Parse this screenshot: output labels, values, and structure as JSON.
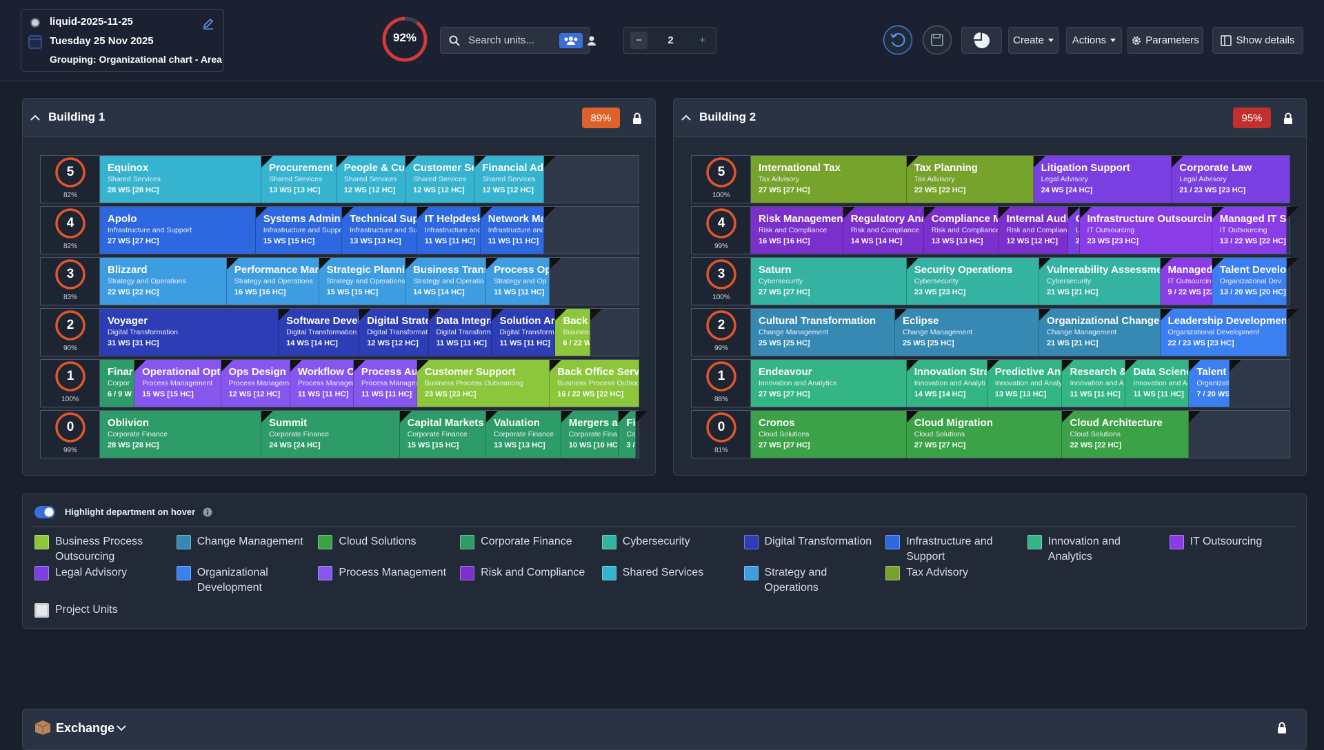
{
  "header": {
    "project": "liquid-2025-11-25",
    "date": "Tuesday 25 Nov 2025",
    "grouping": "Grouping: Organizational chart - Area",
    "occupancy": "92%",
    "search_placeholder": "Search units...",
    "decrement": "−",
    "level": "2",
    "increment": "+",
    "create": "Create",
    "actions": "Actions",
    "parameters": "Parameters",
    "show_details": "Show details"
  },
  "buildings": [
    {
      "name": "Building 1",
      "occupancy": "89%",
      "badge_color": "#dd6128",
      "floors": [
        {
          "level": "5",
          "occupancy": "82%",
          "units": [
            {
              "name": "Equinox",
              "department": "Shared Services",
              "workstations": "28 WS [28 HC]",
              "color": "#36b3cf"
            },
            {
              "name": "Procurement S",
              "department": "Shared Services",
              "workstations": "13 WS [13 HC]",
              "color": "#36b3cf"
            },
            {
              "name": "People & Cul",
              "department": "Shared Services",
              "workstations": "12 WS [12 HC]",
              "color": "#36b3cf"
            },
            {
              "name": "Customer Ser",
              "department": "Shared Services",
              "workstations": "12 WS [12 HC]",
              "color": "#36b3cf"
            },
            {
              "name": "Financial Adr",
              "department": "Shared Services",
              "workstations": "12 WS [12 HC]",
              "color": "#36b3cf"
            }
          ]
        },
        {
          "level": "4",
          "occupancy": "82%",
          "units": [
            {
              "name": "Apolo",
              "department": "Infrastructure and Support",
              "workstations": "27 WS [27 HC]",
              "color": "#2e68e0"
            },
            {
              "name": "Systems Adminis",
              "department": "Infrastructure and Suppo",
              "workstations": "15 WS [15 HC]",
              "color": "#2e68e0"
            },
            {
              "name": "Technical Supp",
              "department": "Infrastructure and Su",
              "workstations": "13 WS [13 HC]",
              "color": "#2e68e0"
            },
            {
              "name": "IT Helpdesk",
              "department": "Infrastructure and",
              "workstations": "11 WS [11 HC]",
              "color": "#2e68e0"
            },
            {
              "name": "Network Ma",
              "department": "Infrastructure and",
              "workstations": "11 WS [11 HC]",
              "color": "#2e68e0"
            }
          ]
        },
        {
          "level": "3",
          "occupancy": "83%",
          "units": [
            {
              "name": "Blizzard",
              "department": "Strategy and Operations",
              "workstations": "22 WS [22 HC]",
              "color": "#3d9de0"
            },
            {
              "name": "Performance Man",
              "department": "Strategy and Operations",
              "workstations": "16 WS [16 HC]",
              "color": "#3d9de0"
            },
            {
              "name": "Strategic Plannin",
              "department": "Strategy and Operations",
              "workstations": "15 WS [15 HC]",
              "color": "#3d9de0"
            },
            {
              "name": "Business Transfo",
              "department": "Strategy and Operatio",
              "workstations": "14 WS [14 HC]",
              "color": "#3d9de0"
            },
            {
              "name": "Process Op",
              "department": "Strategy and Op",
              "workstations": "11 WS [11 HC]",
              "color": "#3d9de0"
            }
          ]
        },
        {
          "level": "2",
          "occupancy": "90%",
          "units": [
            {
              "name": "Voyager",
              "department": "Digital Transformation",
              "workstations": "31 WS [31 HC]",
              "color": "#2c3db5"
            },
            {
              "name": "Software Devel",
              "department": "Digital Transformation",
              "workstations": "14 WS [14 HC]",
              "color": "#2c3db5"
            },
            {
              "name": "Digital Strate",
              "department": "Digital Transformat",
              "workstations": "12 WS [12 HC]",
              "color": "#2c3db5"
            },
            {
              "name": "Data Integra",
              "department": "Digital Transform",
              "workstations": "11 WS [11 HC]",
              "color": "#2c3db5"
            },
            {
              "name": "Solution Arc",
              "department": "Digital Transform",
              "workstations": "11 WS [11 HC]",
              "color": "#2c3db5"
            },
            {
              "name": "Back C",
              "department": "Business",
              "workstations": "6 / 22 W",
              "color": "#8cc63a"
            }
          ]
        },
        {
          "level": "1",
          "occupancy": "100%",
          "units": [
            {
              "name": "Finar",
              "department": "Corpor",
              "workstations": "6 / 9 W",
              "color": "#2e9c68"
            },
            {
              "name": "Operational Opt",
              "department": "Process Management",
              "workstations": "15 WS [15 HC]",
              "color": "#8656ee"
            },
            {
              "name": "Ops Design",
              "department": "Process Manageme",
              "workstations": "12 WS [12 HC]",
              "color": "#8656ee"
            },
            {
              "name": "Workflow C",
              "department": "Process Managem",
              "workstations": "11 WS [11 HC]",
              "color": "#8656ee"
            },
            {
              "name": "Process Aut",
              "department": "Process Managem",
              "workstations": "11 WS [11 HC]",
              "color": "#8656ee"
            },
            {
              "name": "Customer Support",
              "department": "Business Process Outsourcing",
              "workstations": "23 WS [23 HC]",
              "color": "#8cc63a"
            },
            {
              "name": "Back Office Servi",
              "department": "Business Process Outsour",
              "workstations": "16 / 22 WS [22 HC]",
              "color": "#8cc63a"
            }
          ]
        },
        {
          "level": "0",
          "occupancy": "99%",
          "units": [
            {
              "name": "Oblivion",
              "department": "Corporate Finance",
              "workstations": "28 WS [28 HC]",
              "color": "#2e9c68"
            },
            {
              "name": "Summit",
              "department": "Corporate Finance",
              "workstations": "24 WS [24 HC]",
              "color": "#2e9c68"
            },
            {
              "name": "Capital Markets A",
              "department": "Corporate Finance",
              "workstations": "15 WS [15 HC]",
              "color": "#2e9c68"
            },
            {
              "name": "Valuation",
              "department": "Corporate Finance",
              "workstations": "13 WS [13 HC]",
              "color": "#2e9c68"
            },
            {
              "name": "Mergers ar",
              "department": "Corporate Fina",
              "workstations": "10 WS [10 HC]",
              "color": "#2e9c68"
            },
            {
              "name": "Fi",
              "department": "Cor",
              "workstations": "3 /",
              "color": "#2e9c68"
            }
          ]
        }
      ]
    },
    {
      "name": "Building 2",
      "occupancy": "95%",
      "badge_color": "#c22f2c",
      "floors": [
        {
          "level": "5",
          "occupancy": "100%",
          "units": [
            {
              "name": "International Tax",
              "department": "Tax Advisory",
              "workstations": "27 WS [27 HC]",
              "color": "#76a32b"
            },
            {
              "name": "Tax Planning",
              "department": "Tax Advisory",
              "workstations": "22 WS [22 HC]",
              "color": "#76a32b"
            },
            {
              "name": "Litigation Support",
              "department": "Legal Advisory",
              "workstations": "24 WS [24 HC]",
              "color": "#7a3fe0"
            },
            {
              "name": "Corporate Law",
              "department": "Legal Advisory",
              "workstations": "21 / 23 WS [23 HC]",
              "color": "#7a3fe0"
            }
          ]
        },
        {
          "level": "4",
          "occupancy": "99%",
          "units": [
            {
              "name": "Risk Management",
              "department": "Risk and Compliance",
              "workstations": "16 WS [16 HC]",
              "color": "#7b2fcc"
            },
            {
              "name": "Regulatory Ana",
              "department": "Risk and Compliance",
              "workstations": "14 WS [14 HC]",
              "color": "#7b2fcc"
            },
            {
              "name": "Compliance M",
              "department": "Risk and Compliance",
              "workstations": "13 WS [13 HC]",
              "color": "#7b2fcc"
            },
            {
              "name": "Internal Audi",
              "department": "Risk and Complianc",
              "workstations": "12 WS [12 HC]",
              "color": "#7b2fcc"
            },
            {
              "name": "C",
              "department": "Le",
              "workstations": "2 /",
              "color": "#7a3fe0"
            },
            {
              "name": "Infrastructure Outsourcing",
              "department": "IT Outsourcing",
              "workstations": "23 WS [23 HC]",
              "color": "#8a3de6"
            },
            {
              "name": "Managed IT S",
              "department": "IT Outsourcing",
              "workstations": "13 / 22 WS [22 HC]",
              "color": "#8a3de6"
            }
          ]
        },
        {
          "level": "3",
          "occupancy": "100%",
          "units": [
            {
              "name": "Saturn",
              "department": "Cybersecurity",
              "workstations": "27 WS [27 HC]",
              "color": "#35b3a2"
            },
            {
              "name": "Security Operations",
              "department": "Cybersecurity",
              "workstations": "23 WS [23 HC]",
              "color": "#35b3a2"
            },
            {
              "name": "Vulnerability Assessmer",
              "department": "Cybersecurity",
              "workstations": "21 WS [21 HC]",
              "color": "#35b3a2"
            },
            {
              "name": "Managed",
              "department": "IT Outsourcing",
              "workstations": "9 / 22 WS [22",
              "color": "#8a3de6"
            },
            {
              "name": "Talent Develo",
              "department": "Organizational Dev",
              "workstations": "13 / 20 WS [20 HC]",
              "color": "#3b7ff0"
            }
          ]
        },
        {
          "level": "2",
          "occupancy": "99%",
          "units": [
            {
              "name": "Cultural Transformation",
              "department": "Change Management",
              "workstations": "25 WS [25 HC]",
              "color": "#3589b3"
            },
            {
              "name": "Eclipse",
              "department": "Change Management",
              "workstations": "25 WS [25 HC]",
              "color": "#3589b3"
            },
            {
              "name": "Organizational Change",
              "department": "Change Management",
              "workstations": "21 WS [21 HC]",
              "color": "#3589b3"
            },
            {
              "name": "Leadership Development",
              "department": "Organizational Development",
              "workstations": "22 / 23 WS [23 HC]",
              "color": "#3b7ff0"
            }
          ]
        },
        {
          "level": "1",
          "occupancy": "88%",
          "units": [
            {
              "name": "Endeavour",
              "department": "Innovation and Analytics",
              "workstations": "27 WS [27 HC]",
              "color": "#33b585"
            },
            {
              "name": "Innovation Stra",
              "department": "Innovation and Analyti",
              "workstations": "14 WS [14 HC]",
              "color": "#33b585"
            },
            {
              "name": "Predictive Ana",
              "department": "Innovation and Analy",
              "workstations": "13 WS [13 HC]",
              "color": "#33b585"
            },
            {
              "name": "Research & I",
              "department": "Innovation and A",
              "workstations": "11 WS [11 HC]",
              "color": "#33b585"
            },
            {
              "name": "Data Scienc",
              "department": "Innovation and A",
              "workstations": "11 WS [11 HC]",
              "color": "#33b585"
            },
            {
              "name": "Talent D",
              "department": "Organizatio",
              "workstations": "7 / 20 WS",
              "color": "#3b7ff0"
            }
          ]
        },
        {
          "level": "0",
          "occupancy": "81%",
          "units": [
            {
              "name": "Cronos",
              "department": "Cloud Solutions",
              "workstations": "27 WS [27 HC]",
              "color": "#3ba247"
            },
            {
              "name": "Cloud Migration",
              "department": "Cloud Solutions",
              "workstations": "27 WS [27 HC]",
              "color": "#3ba247"
            },
            {
              "name": "Cloud Architecture",
              "department": "Cloud Solutions",
              "workstations": "22 WS [22 HC]",
              "color": "#3ba247"
            }
          ]
        }
      ]
    }
  ],
  "legend": {
    "toggle": "Highlight department on hover",
    "departments": [
      {
        "name": "Business Process Outsourcing",
        "color": "#8cc63a"
      },
      {
        "name": "Change Management",
        "color": "#3589b3"
      },
      {
        "name": "Cloud Solutions",
        "color": "#3ba247"
      },
      {
        "name": "Corporate Finance",
        "color": "#2e9c68"
      },
      {
        "name": "Cybersecurity",
        "color": "#35b3a2"
      },
      {
        "name": "Digital Transformation",
        "color": "#2c3db5"
      },
      {
        "name": "Infrastructure and Support",
        "color": "#2e68e0"
      },
      {
        "name": "Innovation and Analytics",
        "color": "#33b585"
      },
      {
        "name": "IT Outsourcing",
        "color": "#8a3de6"
      },
      {
        "name": "Legal Advisory",
        "color": "#7a3fe0"
      },
      {
        "name": "Organizational Development",
        "color": "#3b7ff0"
      },
      {
        "name": "Process Management",
        "color": "#8656ee"
      },
      {
        "name": "Risk and Compliance",
        "color": "#7b2fcc"
      },
      {
        "name": "Shared Services",
        "color": "#36b3cf"
      },
      {
        "name": "Strategy and Operations",
        "color": "#3d9de0"
      },
      {
        "name": "Tax Advisory",
        "color": "#76a32b"
      }
    ],
    "project_units": "Project Units"
  },
  "exchange": {
    "title": "Exchange"
  }
}
